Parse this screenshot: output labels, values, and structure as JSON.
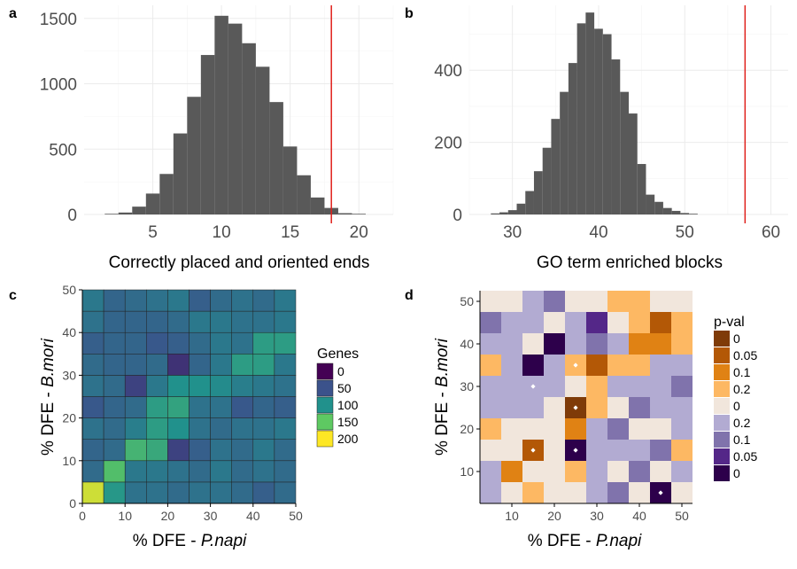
{
  "chart_data": [
    {
      "panel": "a",
      "type": "bar",
      "subtype": "histogram",
      "xlabel": "Correctly placed and oriented ends",
      "ylabel": "",
      "xlim": [
        0,
        22.5
      ],
      "ylim": [
        0,
        1600
      ],
      "xticks": [
        5,
        10,
        15,
        20
      ],
      "yticks": [
        0,
        500,
        1000,
        1500
      ],
      "bin_width": 1,
      "bins": [
        {
          "x": 2,
          "count": 5
        },
        {
          "x": 3,
          "count": 15
        },
        {
          "x": 4,
          "count": 60
        },
        {
          "x": 5,
          "count": 160
        },
        {
          "x": 6,
          "count": 310
        },
        {
          "x": 7,
          "count": 620
        },
        {
          "x": 8,
          "count": 900
        },
        {
          "x": 9,
          "count": 1220
        },
        {
          "x": 10,
          "count": 1520
        },
        {
          "x": 11,
          "count": 1460
        },
        {
          "x": 12,
          "count": 1310
        },
        {
          "x": 13,
          "count": 1130
        },
        {
          "x": 14,
          "count": 860
        },
        {
          "x": 15,
          "count": 520
        },
        {
          "x": 16,
          "count": 300
        },
        {
          "x": 17,
          "count": 130
        },
        {
          "x": 18,
          "count": 50
        },
        {
          "x": 19,
          "count": 10
        },
        {
          "x": 20,
          "count": 5
        }
      ],
      "vline": 18,
      "vline_color": "#e0201b",
      "bar_color": "#595959",
      "grid": true
    },
    {
      "panel": "b",
      "type": "bar",
      "subtype": "histogram",
      "xlabel": "GO term enriched blocks",
      "ylabel": "",
      "xlim": [
        25,
        62
      ],
      "ylim": [
        0,
        580
      ],
      "xticks": [
        30,
        40,
        50,
        60
      ],
      "yticks": [
        0,
        200,
        400
      ],
      "bin_width": 1,
      "bins": [
        {
          "x": 28,
          "count": 3
        },
        {
          "x": 29,
          "count": 6
        },
        {
          "x": 30,
          "count": 12
        },
        {
          "x": 31,
          "count": 30
        },
        {
          "x": 32,
          "count": 65
        },
        {
          "x": 33,
          "count": 120
        },
        {
          "x": 34,
          "count": 185
        },
        {
          "x": 35,
          "count": 265
        },
        {
          "x": 36,
          "count": 340
        },
        {
          "x": 37,
          "count": 420
        },
        {
          "x": 38,
          "count": 530
        },
        {
          "x": 39,
          "count": 560
        },
        {
          "x": 40,
          "count": 515
        },
        {
          "x": 41,
          "count": 500
        },
        {
          "x": 42,
          "count": 430
        },
        {
          "x": 43,
          "count": 340
        },
        {
          "x": 44,
          "count": 280
        },
        {
          "x": 45,
          "count": 140
        },
        {
          "x": 46,
          "count": 55
        },
        {
          "x": 47,
          "count": 35
        },
        {
          "x": 48,
          "count": 18
        },
        {
          "x": 49,
          "count": 10
        },
        {
          "x": 50,
          "count": 4
        },
        {
          "x": 51,
          "count": 2
        }
      ],
      "vline": 57,
      "vline_color": "#e0201b",
      "bar_color": "#595959",
      "grid": true
    },
    {
      "panel": "c",
      "type": "heatmap",
      "xlabel_prefix": "% DFE - ",
      "xlabel_italic": "P.napi",
      "ylabel_prefix": "% DFE - ",
      "ylabel_italic": "B.mori",
      "xlim": [
        0,
        50
      ],
      "ylim": [
        0,
        50
      ],
      "xticks": [
        0,
        10,
        20,
        30,
        40,
        50
      ],
      "yticks": [
        0,
        10,
        20,
        30,
        40,
        50
      ],
      "cell_size": 5,
      "legend_title": "Genes",
      "legend_labels": [
        "0",
        "50",
        "100",
        "150",
        "200"
      ],
      "legend_colors": [
        "#440154",
        "#3b528b",
        "#21918c",
        "#5ec962",
        "#fde725"
      ],
      "value_range": [
        0,
        200
      ],
      "values_rows_bottom_to_top": [
        [
          185,
          105,
          75,
          75,
          70,
          75,
          75,
          70,
          60,
          70
        ],
        [
          70,
          140,
          80,
          80,
          75,
          70,
          80,
          70,
          75,
          70
        ],
        [
          65,
          70,
          130,
          120,
          40,
          60,
          75,
          70,
          80,
          70
        ],
        [
          75,
          70,
          85,
          110,
          100,
          75,
          70,
          75,
          75,
          80
        ],
        [
          55,
          65,
          70,
          110,
          115,
          75,
          75,
          55,
          65,
          60
        ],
        [
          75,
          70,
          40,
          80,
          100,
          100,
          95,
          85,
          80,
          75
        ],
        [
          70,
          65,
          65,
          70,
          30,
          65,
          80,
          110,
          110,
          80
        ],
        [
          60,
          65,
          65,
          55,
          60,
          70,
          80,
          75,
          110,
          110
        ],
        [
          75,
          65,
          65,
          65,
          70,
          80,
          80,
          75,
          75,
          80
        ],
        [
          80,
          65,
          70,
          75,
          80,
          60,
          70,
          75,
          70,
          80
        ]
      ]
    },
    {
      "panel": "d",
      "type": "heatmap",
      "xlabel_prefix": "% DFE - ",
      "xlabel_italic": "P.napi",
      "ylabel_prefix": "% DFE - ",
      "ylabel_italic": "B.mori",
      "xlim": [
        2.5,
        52.5
      ],
      "ylim": [
        2.5,
        52.5
      ],
      "xticks": [
        10,
        20,
        30,
        40,
        50
      ],
      "yticks": [
        10,
        20,
        30,
        40,
        50
      ],
      "cell_size": 5,
      "legend_title": "p-val",
      "legend_labels": [
        "0",
        "0.05",
        "0.1",
        "0.2",
        "0",
        "0.2",
        "0.1",
        "0.05",
        "0"
      ],
      "legend_colors": [
        "#7f3b08",
        "#b35806",
        "#e08214",
        "#fdb863",
        "#f1e6dc",
        "#b2abd2",
        "#8073ac",
        "#542788",
        "#2d004b"
      ],
      "cells_rows_bottom_to_top": [
        [
          5,
          4,
          3,
          4,
          4,
          5,
          6,
          4,
          8,
          4
        ],
        [
          5,
          2,
          4,
          4,
          3,
          5,
          4,
          6,
          4,
          5
        ],
        [
          4,
          4,
          1,
          4,
          8,
          5,
          5,
          5,
          6,
          3
        ],
        [
          3,
          4,
          4,
          4,
          2,
          5,
          6,
          4,
          4,
          5
        ],
        [
          5,
          5,
          5,
          4,
          0,
          3,
          4,
          6,
          5,
          5
        ],
        [
          5,
          5,
          5,
          5,
          4,
          3,
          5,
          5,
          5,
          6
        ],
        [
          3,
          5,
          8,
          5,
          3,
          1,
          3,
          3,
          5,
          5
        ],
        [
          5,
          5,
          4,
          8,
          5,
          6,
          5,
          2,
          2,
          3
        ],
        [
          6,
          5,
          5,
          4,
          5,
          7,
          4,
          3,
          1,
          3
        ],
        [
          4,
          4,
          5,
          6,
          4,
          4,
          3,
          3,
          4,
          4
        ]
      ],
      "marked_cells": [
        [
          45,
          5
        ],
        [
          25,
          15
        ],
        [
          15,
          15
        ],
        [
          25,
          25
        ],
        [
          15,
          30
        ],
        [
          25,
          35
        ]
      ]
    }
  ],
  "panel_letters": [
    "a",
    "b",
    "c",
    "d"
  ]
}
